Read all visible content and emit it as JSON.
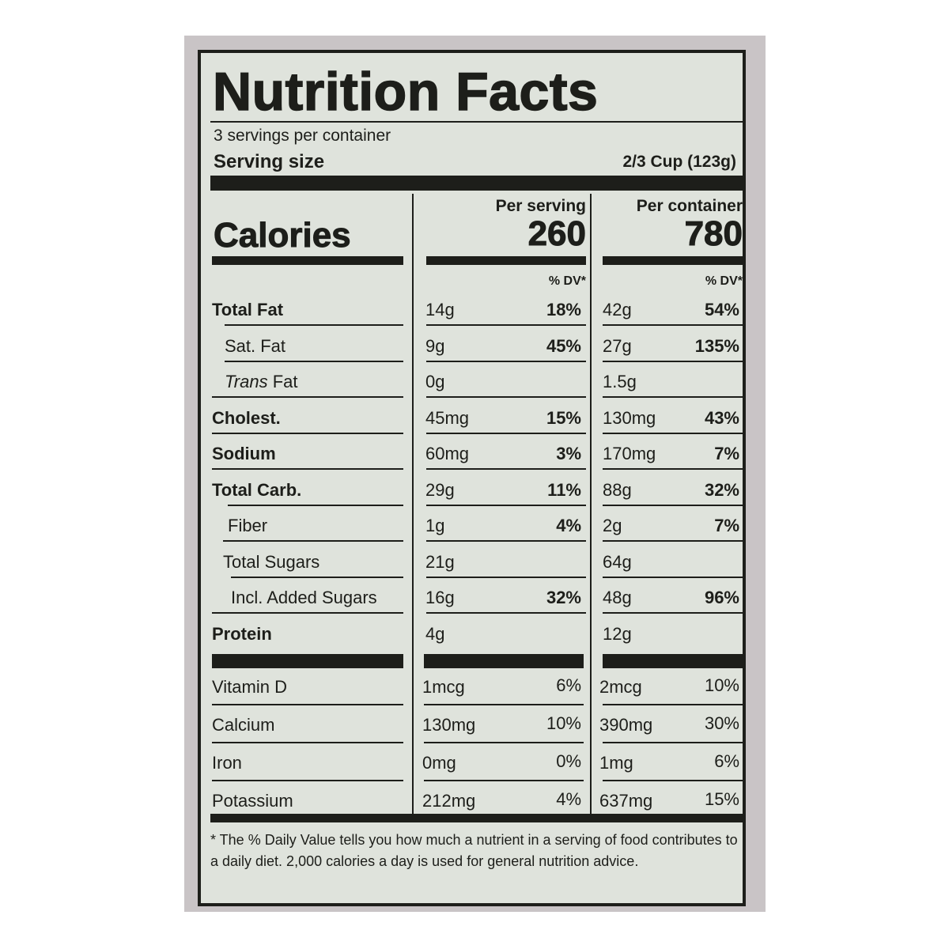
{
  "title": "Nutrition Facts",
  "servings_per_container": "3 servings per container",
  "serving_size_label": "Serving size",
  "serving_size_value": "2/3 Cup (123g)",
  "calories_label": "Calories",
  "columns": {
    "per_serving": {
      "header": "Per serving",
      "calories": "260",
      "dv_header": "% DV*"
    },
    "per_container": {
      "header": "Per container",
      "calories": "780",
      "dv_header": "% DV*"
    }
  },
  "nutrients": [
    {
      "label": "Total Fat",
      "bold": true,
      "serving_amount": "14g",
      "serving_dv": "18%",
      "container_amount": "42g",
      "container_dv": "54%"
    },
    {
      "label": "Sat. Fat",
      "bold": false,
      "serving_amount": "9g",
      "serving_dv": "45%",
      "container_amount": "27g",
      "container_dv": "135%"
    },
    {
      "label_italic": "Trans",
      "label": " Fat",
      "bold": false,
      "serving_amount": "0g",
      "serving_dv": "",
      "container_amount": "1.5g",
      "container_dv": ""
    },
    {
      "label": "Cholest.",
      "bold": true,
      "serving_amount": "45mg",
      "serving_dv": "15%",
      "container_amount": "130mg",
      "container_dv": "43%"
    },
    {
      "label": "Sodium",
      "bold": true,
      "serving_amount": "60mg",
      "serving_dv": "3%",
      "container_amount": "170mg",
      "container_dv": "7%"
    },
    {
      "label": "Total Carb.",
      "bold": true,
      "serving_amount": "29g",
      "serving_dv": "11%",
      "container_amount": "88g",
      "container_dv": "32%"
    },
    {
      "label": "Fiber",
      "bold": false,
      "serving_amount": "1g",
      "serving_dv": "4%",
      "container_amount": "2g",
      "container_dv": "7%"
    },
    {
      "label": "Total Sugars",
      "bold": false,
      "serving_amount": "21g",
      "serving_dv": "",
      "container_amount": "64g",
      "container_dv": ""
    },
    {
      "label": "Incl. Added Sugars",
      "bold": false,
      "serving_amount": "16g",
      "serving_dv": "32%",
      "container_amount": "48g",
      "container_dv": "96%"
    },
    {
      "label": "Protein",
      "bold": true,
      "serving_amount": "4g",
      "serving_dv": "",
      "container_amount": "12g",
      "container_dv": ""
    }
  ],
  "vitamins": [
    {
      "label": "Vitamin D",
      "serving_amount": "1mcg",
      "serving_dv": "6%",
      "container_amount": "2mcg",
      "container_dv": "10%"
    },
    {
      "label": "Calcium",
      "serving_amount": "130mg",
      "serving_dv": "10%",
      "container_amount": "390mg",
      "container_dv": "30%"
    },
    {
      "label": "Iron",
      "serving_amount": "0mg",
      "serving_dv": "0%",
      "container_amount": "1mg",
      "container_dv": "6%"
    },
    {
      "label": "Potassium",
      "serving_amount": "212mg",
      "serving_dv": "4%",
      "container_amount": "637mg",
      "container_dv": "15%"
    }
  ],
  "footnote": "* The % Daily Value tells you how much a nutrient in a serving of food contributes to a daily diet. 2,000 calories a day is used for general nutrition advice."
}
